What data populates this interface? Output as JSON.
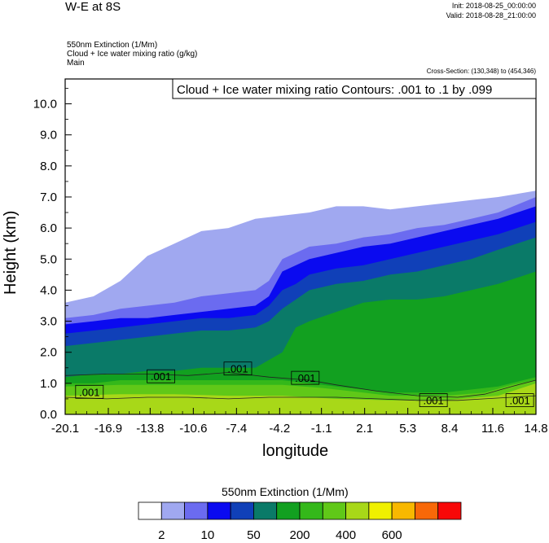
{
  "header": {
    "title": "W-E at 8S",
    "init": "Init: 2018-08-25_00:00:00",
    "valid": "Valid: 2018-08-28_21:00:00",
    "fields": [
      "550nm Extinction   (1/Mm)",
      "Cloud + Ice water mixing ratio   (g/kg)",
      "Main"
    ],
    "cross_section": "Cross-Section: (130,348) to (454,346)"
  },
  "chart_data": {
    "type": "contour",
    "title": "W-E at 8S",
    "xlabel": "longitude",
    "ylabel": "Height (km)",
    "xlim": [
      -20.1,
      14.8
    ],
    "ylim": [
      0.0,
      10.8
    ],
    "x_ticks": [
      "-20.1",
      "-16.9",
      "-13.8",
      "-10.6",
      "-7.4",
      "-4.2",
      "-1.1",
      "2.1",
      "5.3",
      "8.4",
      "11.6",
      "14.8"
    ],
    "y_ticks": [
      "0.0",
      "1.0",
      "2.0",
      "3.0",
      "4.0",
      "5.0",
      "6.0",
      "7.0",
      "8.0",
      "9.0",
      "10.0"
    ],
    "contour_title": "Cloud + Ice water mixing ratio Contours: .001 to .1 by .099",
    "contour_labels": [
      {
        "text": ".001",
        "x": -18.3,
        "y": 0.7
      },
      {
        "text": ".001",
        "x": -13.0,
        "y": 1.2
      },
      {
        "text": ".001",
        "x": -7.3,
        "y": 1.45
      },
      {
        "text": ".001",
        "x": -2.3,
        "y": 1.15
      },
      {
        "text": ".001",
        "x": 7.2,
        "y": 0.43
      },
      {
        "text": ".001",
        "x": 13.6,
        "y": 0.43
      }
    ],
    "colorbar": {
      "title": "550nm Extinction  (1/Mm)",
      "colors": [
        "#ffffff",
        "#a0a8f0",
        "#6b6bf0",
        "#0a0af0",
        "#1040b8",
        "#0a7a68",
        "#12a020",
        "#34b81a",
        "#60c818",
        "#a8d818",
        "#f0f000",
        "#f8b800",
        "#f86808",
        "#f80808"
      ],
      "tick_labels": [
        "2",
        "10",
        "50",
        "200",
        "400",
        "600"
      ]
    },
    "levels": [
      {
        "color": "#a0a8f0",
        "top": [
          [
            -20.1,
            3.6
          ],
          [
            -18,
            3.8
          ],
          [
            -16,
            4.3
          ],
          [
            -14,
            5.1
          ],
          [
            -12,
            5.5
          ],
          [
            -10,
            5.9
          ],
          [
            -8,
            6.0
          ],
          [
            -6,
            6.3
          ],
          [
            -4,
            6.4
          ],
          [
            -2,
            6.5
          ],
          [
            0,
            6.7
          ],
          [
            2,
            6.7
          ],
          [
            4,
            6.6
          ],
          [
            6,
            6.7
          ],
          [
            8,
            6.8
          ],
          [
            10,
            6.9
          ],
          [
            12,
            7.0
          ],
          [
            14.8,
            7.2
          ]
        ]
      },
      {
        "color": "#6b6bf0",
        "top": [
          [
            -20.1,
            3.1
          ],
          [
            -18,
            3.2
          ],
          [
            -16,
            3.4
          ],
          [
            -14,
            3.5
          ],
          [
            -12,
            3.6
          ],
          [
            -10,
            3.8
          ],
          [
            -8,
            3.9
          ],
          [
            -6,
            4.0
          ],
          [
            -5,
            4.3
          ],
          [
            -4,
            5.0
          ],
          [
            -3,
            5.2
          ],
          [
            -2,
            5.4
          ],
          [
            0,
            5.5
          ],
          [
            2,
            5.7
          ],
          [
            4,
            5.8
          ],
          [
            6,
            6.0
          ],
          [
            8,
            6.1
          ],
          [
            10,
            6.3
          ],
          [
            12,
            6.5
          ],
          [
            14.8,
            7.0
          ]
        ]
      },
      {
        "color": "#0a0af0",
        "top": [
          [
            -20.1,
            2.9
          ],
          [
            -18,
            3.0
          ],
          [
            -16,
            3.1
          ],
          [
            -14,
            3.1
          ],
          [
            -12,
            3.2
          ],
          [
            -10,
            3.3
          ],
          [
            -8,
            3.4
          ],
          [
            -6,
            3.5
          ],
          [
            -5,
            3.8
          ],
          [
            -4,
            4.6
          ],
          [
            -3,
            4.8
          ],
          [
            -2,
            5.0
          ],
          [
            0,
            5.2
          ],
          [
            2,
            5.4
          ],
          [
            4,
            5.5
          ],
          [
            6,
            5.7
          ],
          [
            8,
            5.9
          ],
          [
            10,
            6.1
          ],
          [
            12,
            6.3
          ],
          [
            14.8,
            6.7
          ]
        ]
      },
      {
        "color": "#1040b8",
        "top": [
          [
            -20.1,
            2.6
          ],
          [
            -18,
            2.7
          ],
          [
            -16,
            2.8
          ],
          [
            -14,
            2.9
          ],
          [
            -12,
            3.0
          ],
          [
            -10,
            3.1
          ],
          [
            -8,
            3.1
          ],
          [
            -6,
            3.2
          ],
          [
            -5,
            3.5
          ],
          [
            -4,
            4.0
          ],
          [
            -3,
            4.2
          ],
          [
            -2,
            4.5
          ],
          [
            0,
            4.7
          ],
          [
            2,
            4.8
          ],
          [
            4,
            5.0
          ],
          [
            6,
            5.2
          ],
          [
            8,
            5.4
          ],
          [
            10,
            5.6
          ],
          [
            12,
            5.8
          ],
          [
            14.8,
            6.2
          ]
        ]
      },
      {
        "color": "#0a7a68",
        "top": [
          [
            -20.1,
            2.2
          ],
          [
            -18,
            2.3
          ],
          [
            -16,
            2.4
          ],
          [
            -14,
            2.5
          ],
          [
            -12,
            2.6
          ],
          [
            -10,
            2.7
          ],
          [
            -8,
            2.7
          ],
          [
            -6,
            2.8
          ],
          [
            -5,
            3.0
          ],
          [
            -4,
            3.4
          ],
          [
            -3,
            3.7
          ],
          [
            -2,
            4.0
          ],
          [
            0,
            4.2
          ],
          [
            2,
            4.3
          ],
          [
            4,
            4.5
          ],
          [
            6,
            4.6
          ],
          [
            8,
            4.8
          ],
          [
            10,
            5.0
          ],
          [
            12,
            5.3
          ],
          [
            14.8,
            5.7
          ]
        ]
      },
      {
        "color": "#12a020",
        "top": [
          [
            -20.1,
            1.2
          ],
          [
            -18,
            1.3
          ],
          [
            -16,
            1.3
          ],
          [
            -14,
            1.4
          ],
          [
            -12,
            1.4
          ],
          [
            -10,
            1.5
          ],
          [
            -8,
            1.5
          ],
          [
            -6,
            1.5
          ],
          [
            -4,
            2.0
          ],
          [
            -3,
            2.8
          ],
          [
            -2,
            3.0
          ],
          [
            0,
            3.3
          ],
          [
            2,
            3.6
          ],
          [
            4,
            3.7
          ],
          [
            6,
            3.7
          ],
          [
            8,
            3.8
          ],
          [
            10,
            4.0
          ],
          [
            12,
            4.2
          ],
          [
            14.8,
            4.6
          ]
        ]
      },
      {
        "color": "#34b81a",
        "top": [
          [
            -20.1,
            1.0
          ],
          [
            -18,
            1.0
          ],
          [
            -16,
            1.1
          ],
          [
            -14,
            1.1
          ],
          [
            -12,
            1.1
          ],
          [
            -10,
            1.1
          ],
          [
            -8,
            1.1
          ],
          [
            -6,
            1.1
          ],
          [
            -4,
            1.1
          ],
          [
            -2,
            1.0
          ],
          [
            0,
            0.9
          ],
          [
            2,
            0.8
          ],
          [
            4,
            0.7
          ],
          [
            6,
            0.7
          ],
          [
            8,
            0.7
          ],
          [
            10,
            0.8
          ],
          [
            12,
            0.9
          ],
          [
            14.8,
            1.2
          ]
        ]
      },
      {
        "color": "#60c818",
        "top": [
          [
            -20.1,
            0.9
          ],
          [
            -16,
            0.95
          ],
          [
            -12,
            0.95
          ],
          [
            -8,
            0.95
          ],
          [
            -4,
            0.95
          ],
          [
            -1,
            0.85
          ],
          [
            2,
            0.7
          ],
          [
            4,
            0.6
          ],
          [
            8,
            0.6
          ],
          [
            11,
            0.7
          ],
          [
            13,
            0.95
          ],
          [
            14.8,
            1.1
          ]
        ]
      },
      {
        "color": "#a8d818",
        "top": [
          [
            -20.1,
            0.6
          ],
          [
            -16,
            0.65
          ],
          [
            -12,
            0.65
          ],
          [
            -8,
            0.6
          ],
          [
            -4,
            0.6
          ],
          [
            0,
            0.5
          ],
          [
            4,
            0.45
          ],
          [
            8,
            0.45
          ],
          [
            12,
            0.6
          ],
          [
            14.8,
            1.0
          ]
        ]
      }
    ]
  }
}
